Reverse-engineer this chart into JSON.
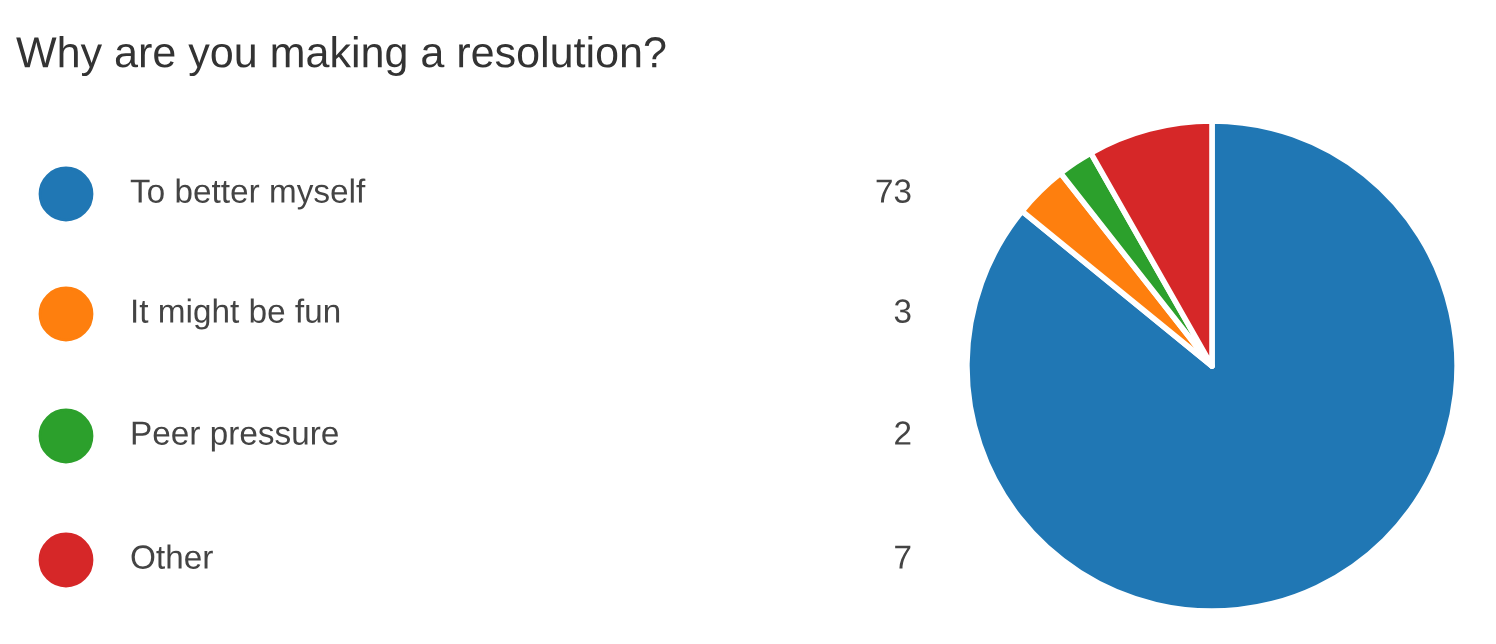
{
  "chart_data": {
    "type": "pie",
    "title": "Why are you making a resolution?",
    "categories": [
      "To better myself",
      "It might be fun",
      "Peer pressure",
      "Other"
    ],
    "values": [
      73,
      3,
      2,
      7
    ],
    "colors": [
      "#2077b4",
      "#fe7f0e",
      "#2ca02c",
      "#d62728"
    ],
    "data_labels": true,
    "legend": "left"
  }
}
